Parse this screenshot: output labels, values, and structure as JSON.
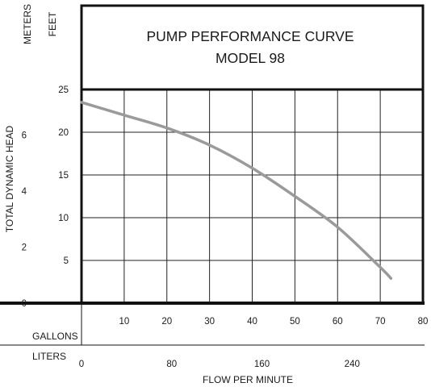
{
  "chart_data": {
    "type": "line",
    "title": "PUMP PERFORMANCE CURVE",
    "subtitle": "MODEL 98",
    "xlabel": "FLOW PER MINUTE",
    "ylabel": "TOTAL DYNAMIC HEAD",
    "x_primary_unit": "GALLONS",
    "x_secondary_unit": "LITERS",
    "y_primary_unit": "FEET",
    "y_secondary_unit": "METERS",
    "xlim": [
      0,
      80
    ],
    "ylim": [
      0,
      25
    ],
    "x_ticks": [
      10,
      20,
      30,
      40,
      50,
      60,
      70,
      80
    ],
    "x_secondary_ticks": [
      0,
      80,
      160,
      240
    ],
    "y_ticks": [
      5,
      10,
      15,
      20,
      25
    ],
    "y_secondary_ticks": [
      0,
      2,
      4,
      6
    ],
    "grid": true,
    "series": [
      {
        "color": "#9a9a9a",
        "x": [
          0,
          10,
          20,
          30,
          40,
          50,
          60,
          70,
          72.5
        ],
        "y": [
          23.5,
          22.0,
          20.5,
          18.5,
          15.8,
          12.5,
          8.9,
          4.2,
          2.9
        ]
      }
    ]
  }
}
